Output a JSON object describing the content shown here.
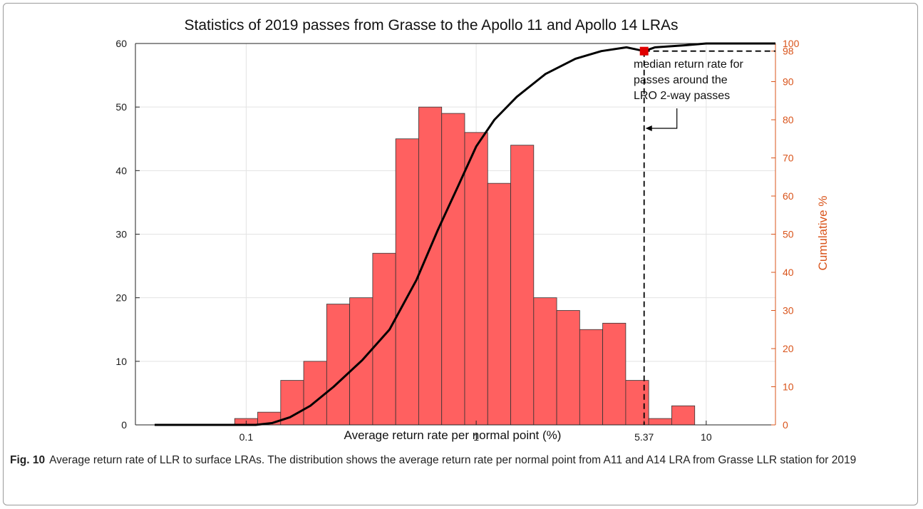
{
  "chart_data": {
    "type": "bar",
    "title": "Statistics of 2019 passes from Grasse to the Apollo 11 and Apollo 14 LRAs",
    "xlabel": "Average return rate per normal point (%)",
    "ylabel": "",
    "ylabel_right": "Cumulative %",
    "x_scale": "log",
    "xlim": [
      0.033,
      20
    ],
    "ylim": [
      0,
      60
    ],
    "ylim_right": [
      0,
      100
    ],
    "x_ticks": [
      0.1,
      1,
      5.37,
      10
    ],
    "x_tick_labels": [
      "0.1",
      "1",
      "5.37",
      "10"
    ],
    "y_ticks": [
      0,
      10,
      20,
      30,
      40,
      50,
      60
    ],
    "y_ticks_right": [
      0,
      10,
      20,
      30,
      40,
      50,
      60,
      70,
      80,
      90,
      98,
      100
    ],
    "grid": true,
    "bins": {
      "log10_start": -1.05,
      "log10_width": 0.1,
      "values": [
        1,
        2,
        7,
        10,
        19,
        20,
        27,
        45,
        50,
        49,
        46,
        38,
        44,
        20,
        18,
        15,
        16,
        7,
        1,
        3
      ]
    },
    "series": [
      {
        "name": "",
        "color": "#ff6060",
        "values": [
          1,
          2,
          7,
          10,
          19,
          20,
          27,
          45,
          50,
          49,
          46,
          38,
          44,
          20,
          18,
          15,
          16,
          7,
          1,
          3
        ]
      }
    ],
    "cumulative": {
      "color": "#000000",
      "x": [
        0.04,
        0.11,
        0.13,
        0.155,
        0.19,
        0.24,
        0.32,
        0.42,
        0.55,
        0.68,
        0.84,
        1.0,
        1.2,
        1.5,
        2.0,
        2.7,
        3.5,
        4.5,
        5.37,
        6.0,
        8.0,
        10.0,
        20.0
      ],
      "y": [
        0,
        0,
        0.5,
        2,
        5,
        10,
        17,
        25,
        38,
        51,
        63,
        73,
        80,
        86,
        92,
        96,
        98,
        99,
        98,
        99,
        99.5,
        100,
        100
      ]
    },
    "median": {
      "x": 5.37,
      "y_right": 98,
      "color": "#e00000",
      "annotation": "median return rate for passes around the LRO 2-way passes"
    }
  },
  "caption": {
    "label": "Fig. 10",
    "text": "Average return rate of LLR to surface LRAs. The distribution shows the average return rate per normal point from A11 and A14 LRA from Grasse LLR station for 2019"
  }
}
